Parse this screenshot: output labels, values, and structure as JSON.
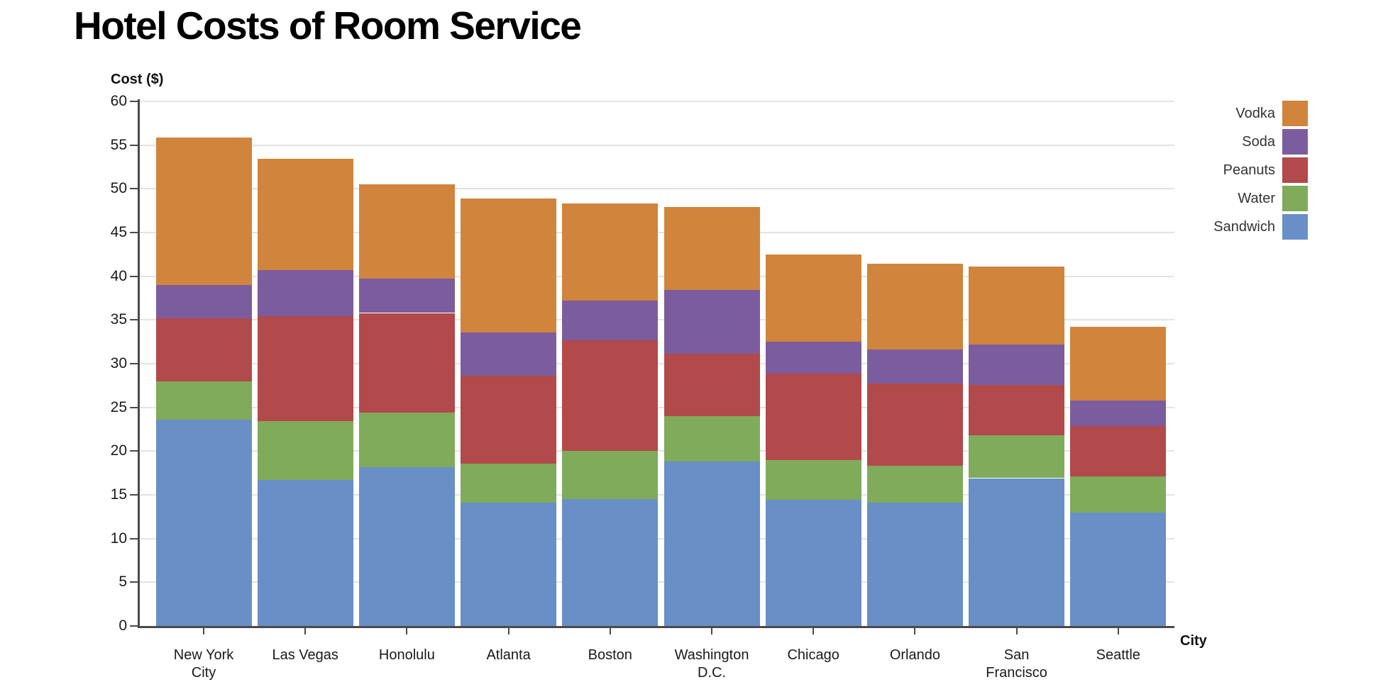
{
  "chart_data": {
    "type": "bar",
    "stacked": true,
    "title": "Hotel Costs of Room Service",
    "xlabel": "City",
    "ylabel": "Cost ($)",
    "ylim": [
      0,
      60
    ],
    "ytick_step": 5,
    "grid": true,
    "legend_position": "top-right",
    "legend": [
      "Vodka",
      "Soda",
      "Peanuts",
      "Water",
      "Sandwich"
    ],
    "categories": [
      "New York\nCity",
      "Las Vegas",
      "Honolulu",
      "Atlanta",
      "Boston",
      "Washington\nD.C.",
      "Chicago",
      "Orlando",
      "San\nFrancisco",
      "Seattle"
    ],
    "series": [
      {
        "name": "Sandwich",
        "color": "#688FC6",
        "values": [
          23.6,
          16.7,
          18.2,
          14.1,
          14.5,
          18.8,
          14.4,
          14.1,
          16.9,
          13.0
        ]
      },
      {
        "name": "Water",
        "color": "#7FAB5B",
        "values": [
          4.4,
          6.7,
          6.2,
          4.5,
          5.5,
          5.2,
          4.6,
          4.2,
          4.9,
          4.1
        ]
      },
      {
        "name": "Peanuts",
        "color": "#B2494A",
        "values": [
          7.2,
          12.0,
          11.4,
          10.0,
          12.7,
          7.1,
          9.9,
          9.4,
          5.8,
          5.8
        ]
      },
      {
        "name": "Soda",
        "color": "#7B5C9E",
        "values": [
          3.8,
          5.3,
          3.9,
          5.0,
          4.5,
          7.3,
          3.6,
          3.9,
          4.6,
          2.9
        ]
      },
      {
        "name": "Vodka",
        "color": "#D0843C",
        "values": [
          16.9,
          12.7,
          10.8,
          15.3,
          11.1,
          9.5,
          10.0,
          9.8,
          8.9,
          8.4
        ]
      }
    ],
    "totals": [
      55.9,
      53.4,
      50.5,
      48.9,
      48.3,
      47.9,
      42.5,
      41.4,
      41.1,
      34.2
    ],
    "axis_color": "#4a4a4a",
    "gridline_color": "#e3e3e3",
    "background": "#ffffff"
  }
}
